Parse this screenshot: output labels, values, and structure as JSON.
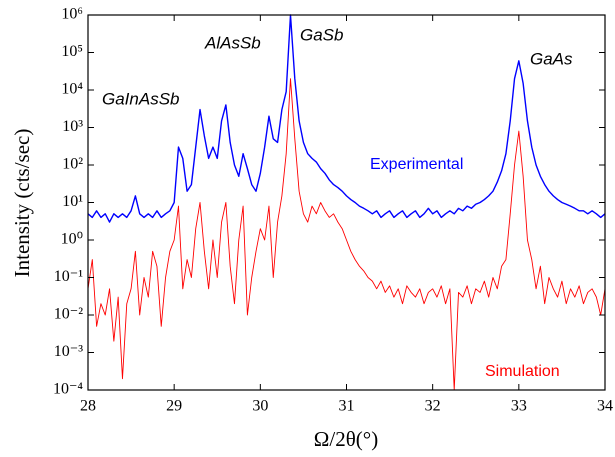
{
  "chart_data": {
    "type": "line",
    "ylog": true,
    "ylabel": "Intensity (cts/sec)",
    "xlabel": "Ω/2θ(°)",
    "annotations": [
      "GaInAsSb",
      "AlAsSb",
      "GaSb",
      "GaAs"
    ],
    "xlim": [
      28,
      34
    ],
    "xticks": [
      28,
      29,
      30,
      31,
      32,
      33,
      34
    ],
    "ylim": [
      0.0001,
      1000000
    ],
    "yticks": [
      {
        "value": 0.0001,
        "label": "10⁻⁴"
      },
      {
        "value": 0.001,
        "label": "10⁻³"
      },
      {
        "value": 0.01,
        "label": "10⁻²"
      },
      {
        "value": 0.1,
        "label": "10⁻¹"
      },
      {
        "value": 1,
        "label": "10⁰"
      },
      {
        "value": 10,
        "label": "10¹"
      },
      {
        "value": 100,
        "label": "10²"
      },
      {
        "value": 1000,
        "label": "10³"
      },
      {
        "value": 10000,
        "label": "10⁴"
      },
      {
        "value": 100000,
        "label": "10⁵"
      },
      {
        "value": 1000000,
        "label": "10⁶"
      }
    ],
    "x": [
      28.0,
      28.05,
      28.1,
      28.15,
      28.2,
      28.25,
      28.3,
      28.35,
      28.4,
      28.45,
      28.5,
      28.55,
      28.6,
      28.65,
      28.7,
      28.75,
      28.8,
      28.85,
      28.9,
      28.95,
      29.0,
      29.05,
      29.1,
      29.15,
      29.2,
      29.25,
      29.3,
      29.35,
      29.4,
      29.45,
      29.5,
      29.55,
      29.6,
      29.65,
      29.7,
      29.75,
      29.8,
      29.85,
      29.9,
      29.95,
      30.0,
      30.05,
      30.1,
      30.15,
      30.2,
      30.25,
      30.3,
      30.35,
      30.4,
      30.45,
      30.5,
      30.55,
      30.6,
      30.65,
      30.7,
      30.75,
      30.8,
      30.85,
      30.9,
      30.95,
      31.0,
      31.05,
      31.1,
      31.15,
      31.2,
      31.25,
      31.3,
      31.35,
      31.4,
      31.45,
      31.5,
      31.55,
      31.6,
      31.65,
      31.7,
      31.75,
      31.8,
      31.85,
      31.9,
      31.95,
      32.0,
      32.05,
      32.1,
      32.15,
      32.2,
      32.25,
      32.3,
      32.35,
      32.4,
      32.45,
      32.5,
      32.55,
      32.6,
      32.65,
      32.7,
      32.75,
      32.8,
      32.85,
      32.9,
      32.95,
      33.0,
      33.05,
      33.1,
      33.15,
      33.2,
      33.25,
      33.3,
      33.35,
      33.4,
      33.45,
      33.5,
      33.55,
      33.6,
      33.65,
      33.7,
      33.75,
      33.8,
      33.85,
      33.9,
      33.95,
      34.0
    ],
    "series": [
      {
        "name": "Experimental",
        "color": "#0000ff",
        "values": [
          5,
          4,
          6,
          4,
          5,
          3,
          5,
          4,
          5,
          4,
          6,
          15,
          5,
          4,
          5,
          4,
          6,
          4,
          5,
          6,
          10,
          300,
          150,
          20,
          30,
          300,
          3000,
          600,
          150,
          300,
          150,
          1500,
          4000,
          400,
          100,
          50,
          200,
          80,
          30,
          20,
          60,
          300,
          2000,
          500,
          400,
          3000,
          9000,
          1000000,
          20000,
          1500,
          400,
          200,
          150,
          120,
          80,
          60,
          40,
          30,
          25,
          20,
          15,
          12,
          10,
          8,
          7,
          6,
          5,
          6,
          4,
          5,
          6,
          4,
          5,
          6,
          4,
          5,
          6,
          4,
          5,
          7,
          5,
          6,
          4,
          5,
          6,
          5,
          7,
          6,
          8,
          7,
          9,
          10,
          12,
          15,
          20,
          35,
          70,
          200,
          1500,
          20000,
          60000,
          15000,
          1500,
          300,
          100,
          50,
          30,
          20,
          15,
          12,
          10,
          9,
          8,
          7,
          6,
          6,
          5,
          6,
          5,
          4,
          5
        ]
      },
      {
        "name": "Simulation",
        "color": "#ff0000",
        "values": [
          0.05,
          0.3,
          0.005,
          0.02,
          0.01,
          0.05,
          0.002,
          0.03,
          0.0002,
          0.02,
          0.05,
          0.5,
          0.01,
          0.1,
          0.03,
          0.5,
          0.2,
          0.005,
          0.1,
          0.5,
          1,
          8,
          0.05,
          0.3,
          0.1,
          2,
          10,
          0.5,
          0.05,
          1,
          0.1,
          3,
          10,
          0.2,
          0.02,
          1,
          8,
          0.01,
          0.1,
          0.5,
          2,
          1,
          8,
          0.1,
          3,
          15,
          200,
          20000,
          500,
          20,
          5,
          3,
          8,
          5,
          10,
          6,
          4,
          5,
          3,
          2,
          1,
          0.5,
          0.3,
          0.2,
          0.15,
          0.1,
          0.08,
          0.05,
          0.08,
          0.04,
          0.06,
          0.03,
          0.05,
          0.02,
          0.06,
          0.04,
          0.03,
          0.05,
          0.02,
          0.04,
          0.05,
          0.03,
          0.06,
          0.02,
          0.05,
          0.0001,
          0.04,
          0.03,
          0.06,
          0.02,
          0.05,
          0.04,
          0.08,
          0.03,
          0.1,
          0.05,
          0.2,
          0.3,
          5,
          100,
          800,
          50,
          1,
          0.3,
          0.05,
          0.2,
          0.02,
          0.1,
          0.05,
          0.03,
          0.08,
          0.02,
          0.05,
          0.03,
          0.06,
          0.02,
          0.04,
          0.05,
          0.03,
          0.01,
          0.05
        ]
      }
    ]
  }
}
